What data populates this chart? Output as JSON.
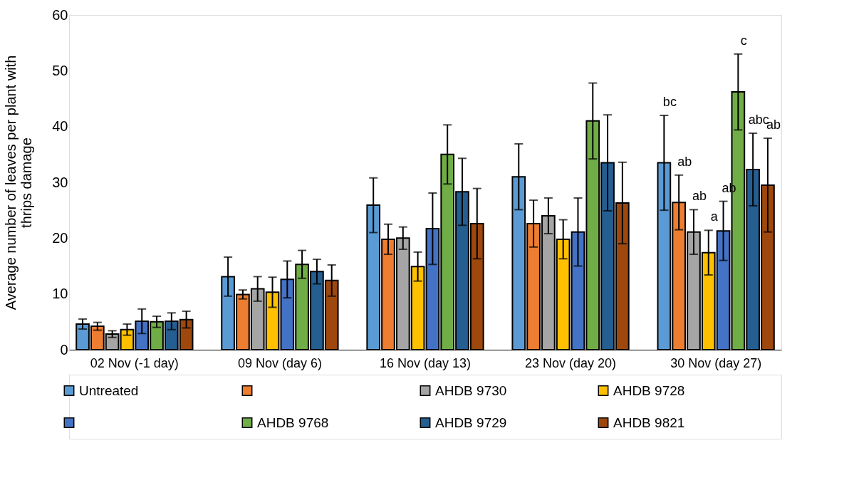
{
  "chart_data": {
    "type": "bar",
    "ylabel": "Average number of leaves per plant with thrips damage",
    "categories": [
      "02 Nov (-1 day)",
      "09 Nov (day 6)",
      "16 Nov (day 13)",
      "23 Nov (day 20)",
      "30 Nov (day 27)"
    ],
    "series": [
      {
        "name": "Untreated",
        "color": "#5b9bd5",
        "values": [
          4.6,
          13.1,
          25.9,
          31.0,
          33.5
        ],
        "errors": [
          0.9,
          3.5,
          4.9,
          5.9,
          8.5
        ]
      },
      {
        "name": null,
        "color": "#ed7d31",
        "values": [
          4.2,
          9.9,
          19.8,
          22.6,
          26.4
        ],
        "errors": [
          0.7,
          0.8,
          2.7,
          4.2,
          4.9
        ]
      },
      {
        "name": "AHDB 9730",
        "color": "#a5a5a5",
        "values": [
          2.8,
          10.9,
          20.0,
          24.0,
          21.1
        ],
        "errors": [
          0.6,
          2.2,
          2.0,
          3.2,
          4.0
        ]
      },
      {
        "name": "AHDB 9728",
        "color": "#ffc000",
        "values": [
          3.6,
          10.3,
          14.9,
          19.8,
          17.4
        ],
        "errors": [
          1.0,
          2.7,
          2.6,
          3.5,
          4.0
        ]
      },
      {
        "name": null,
        "color": "#4472c4",
        "values": [
          5.1,
          12.6,
          21.7,
          21.1,
          21.3
        ],
        "errors": [
          2.2,
          3.3,
          6.4,
          6.1,
          5.3
        ]
      },
      {
        "name": "AHDB 9768",
        "color": "#70ad47",
        "values": [
          5.0,
          15.3,
          35.0,
          41.0,
          46.2
        ],
        "errors": [
          1.0,
          2.5,
          5.3,
          6.8,
          6.8
        ]
      },
      {
        "name": "AHDB 9729",
        "color": "#255e91",
        "values": [
          5.1,
          14.0,
          28.3,
          33.5,
          32.3
        ],
        "errors": [
          1.5,
          2.2,
          6.0,
          8.6,
          6.5
        ]
      },
      {
        "name": "AHDB 9821",
        "color": "#9e480e",
        "values": [
          5.4,
          12.4,
          22.6,
          26.3,
          29.5
        ],
        "errors": [
          1.5,
          2.8,
          6.3,
          7.3,
          8.4
        ]
      }
    ],
    "annotations": [
      "bc",
      "ab",
      "ab",
      "a",
      "ab",
      "c",
      "abc",
      "ab"
    ],
    "ylim": [
      0,
      60
    ],
    "yticks": [
      0,
      10,
      20,
      30,
      40,
      50,
      60
    ],
    "grid": false,
    "legend": "bottom"
  }
}
